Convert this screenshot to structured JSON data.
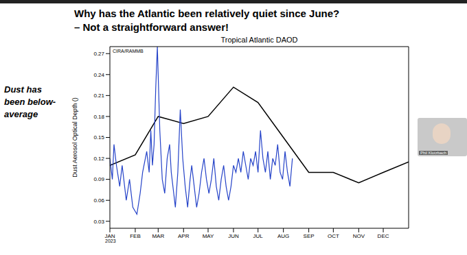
{
  "slide": {
    "title": [
      "Why has the Atlantic been relatively quiet since June?",
      "– Not a straightforward answer!"
    ],
    "note": "Dust has been below-average",
    "speaker": "Phil Klotzbach"
  },
  "chart_data": {
    "type": "line",
    "title": "Tropical Atlantic DAOD",
    "y_label": "Dust Aerosol Optical Depth ()",
    "annotations": [
      "CIRA/RAMMB",
      "2023"
    ],
    "xlim": [
      0,
      365
    ],
    "xticks": [
      {
        "value": 0,
        "label": "JAN"
      },
      {
        "value": 31,
        "label": "FEB"
      },
      {
        "value": 59,
        "label": "MAR"
      },
      {
        "value": 90,
        "label": "APR"
      },
      {
        "value": 120,
        "label": "MAY"
      },
      {
        "value": 151,
        "label": "JUN"
      },
      {
        "value": 181,
        "label": "JUL"
      },
      {
        "value": 212,
        "label": "AUG"
      },
      {
        "value": 243,
        "label": "SEP"
      },
      {
        "value": 273,
        "label": "OCT"
      },
      {
        "value": 304,
        "label": "NOV"
      },
      {
        "value": 334,
        "label": "DEC"
      }
    ],
    "ylim": [
      0.02,
      0.28
    ],
    "yticks": [
      0.03,
      0.06,
      0.09,
      0.12,
      0.15,
      0.18,
      0.21,
      0.24,
      0.27
    ],
    "grid": false,
    "series": [
      {
        "color": "#000000",
        "x": [
          0,
          31,
          59,
          90,
          120,
          151,
          181,
          212,
          243,
          273,
          304,
          334,
          365
        ],
        "values": [
          0.11,
          0.125,
          0.18,
          0.17,
          0.18,
          0.222,
          0.2,
          0.15,
          0.1,
          0.1,
          0.085,
          0.1,
          0.115
        ]
      },
      {
        "color": "#2442c8",
        "x": [
          0,
          3,
          5,
          8,
          12,
          15,
          20,
          24,
          28,
          33,
          37,
          40,
          45,
          48,
          50,
          52,
          54,
          56,
          58,
          61,
          64,
          67,
          70,
          73,
          75,
          78,
          80,
          83,
          86,
          89,
          92,
          95,
          98,
          100,
          103,
          106,
          109,
          112,
          115,
          118,
          121,
          124,
          127,
          130,
          133,
          136,
          139,
          142,
          145,
          148,
          151,
          154,
          157,
          160,
          163,
          166,
          169,
          172,
          175,
          178,
          181,
          184,
          187,
          190,
          193,
          196,
          199,
          202,
          205,
          208,
          211,
          214,
          217,
          220,
          223
        ],
        "values": [
          0.12,
          0.09,
          0.14,
          0.11,
          0.08,
          0.11,
          0.06,
          0.09,
          0.05,
          0.04,
          0.07,
          0.1,
          0.13,
          0.1,
          0.16,
          0.11,
          0.14,
          0.22,
          0.28,
          0.16,
          0.09,
          0.07,
          0.12,
          0.14,
          0.1,
          0.07,
          0.05,
          0.1,
          0.19,
          0.12,
          0.08,
          0.05,
          0.09,
          0.11,
          0.08,
          0.05,
          0.07,
          0.1,
          0.12,
          0.09,
          0.07,
          0.09,
          0.12,
          0.08,
          0.06,
          0.09,
          0.11,
          0.08,
          0.06,
          0.08,
          0.11,
          0.1,
          0.12,
          0.1,
          0.13,
          0.11,
          0.09,
          0.12,
          0.11,
          0.13,
          0.1,
          0.16,
          0.12,
          0.1,
          0.13,
          0.09,
          0.12,
          0.11,
          0.14,
          0.1,
          0.09,
          0.13,
          0.1,
          0.08,
          0.12
        ]
      }
    ]
  }
}
